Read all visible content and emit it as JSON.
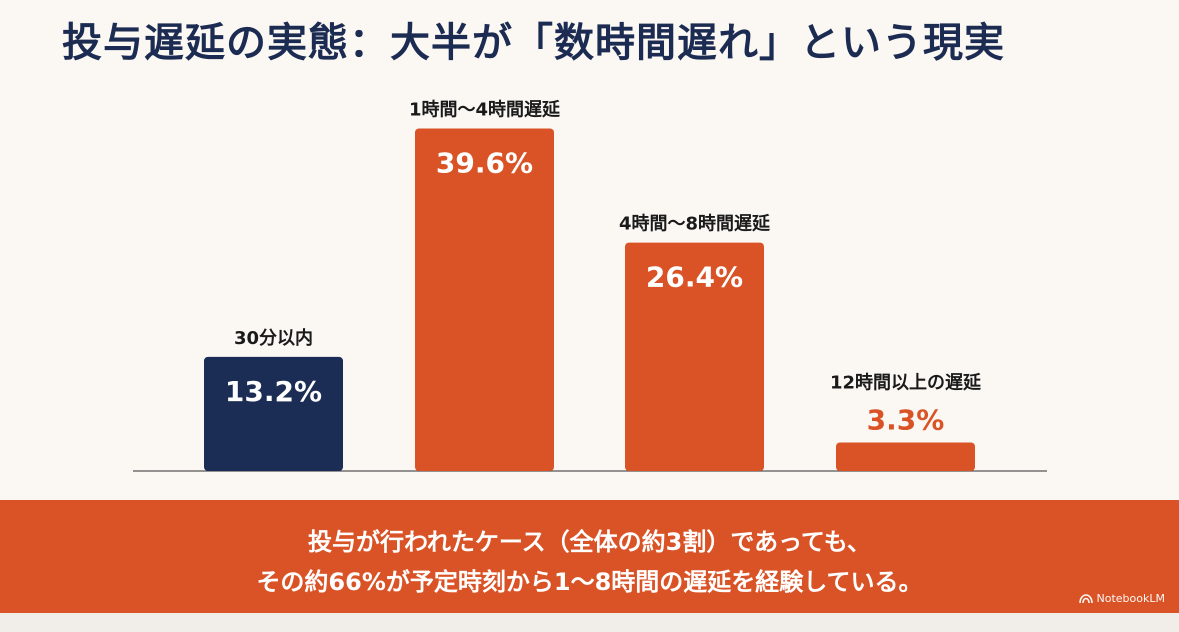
{
  "title": "投与遅延の実態：大半が「数時間遅れ」という現実",
  "chart_data": {
    "type": "bar",
    "categories": [
      "30分以内",
      "1時間〜4時間遅延",
      "4時間〜8時間遅延",
      "12時間以上の遅延"
    ],
    "values": [
      13.2,
      39.6,
      26.4,
      3.3
    ],
    "value_labels": [
      "13.2%",
      "39.6%",
      "26.4%",
      "3.3%"
    ],
    "colors": [
      "#1c2d55",
      "#d95326",
      "#d95326",
      "#d95326"
    ],
    "ylim": [
      0,
      40
    ],
    "grid": false,
    "title": "",
    "xlabel": "",
    "ylabel": ""
  },
  "banner": {
    "line1": "投与が行われたケース（全体の約3割）であっても、",
    "line2": "その約66%が予定時刻から1〜8時間の遅延を経験している。",
    "color": "#d95326"
  },
  "brand": {
    "label": "NotebookLM",
    "icon": "notebooklm-logo-icon"
  }
}
